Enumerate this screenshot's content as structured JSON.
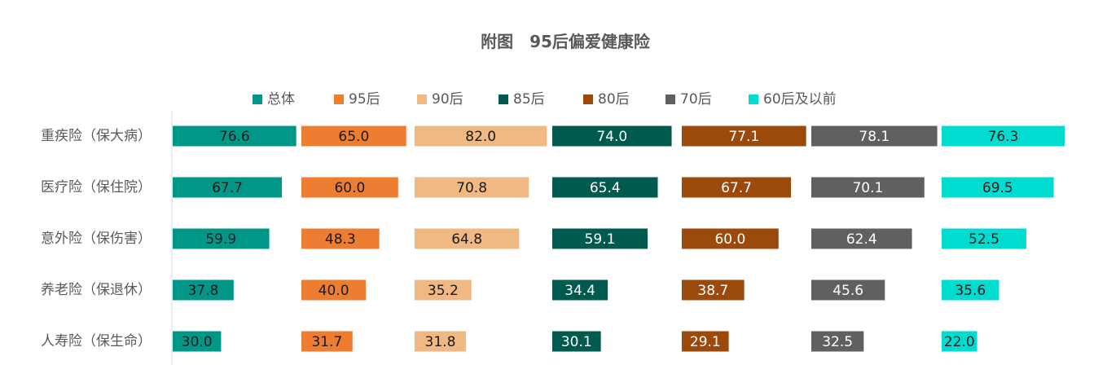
{
  "chart_data": {
    "type": "bar",
    "orientation": "horizontal",
    "layout": "small-multiples-by-series",
    "title": "附图　95后偏爱健康险",
    "categories": [
      "重疾险（保大病）",
      "医疗险（保住院）",
      "意外险（保伤害）",
      "养老险（保退休）",
      "人寿险（保生命）"
    ],
    "series": [
      {
        "name": "总体",
        "color": "#009688",
        "label_color": "#1a1a1a",
        "values": [
          76.6,
          67.7,
          59.9,
          37.8,
          30.0
        ]
      },
      {
        "name": "95后",
        "color": "#ED7D31",
        "label_color": "#1a1a1a",
        "values": [
          65.0,
          60.0,
          48.3,
          40.0,
          31.7
        ]
      },
      {
        "name": "90后",
        "color": "#F0B882",
        "label_color": "#1a1a1a",
        "values": [
          82.0,
          70.8,
          64.8,
          35.2,
          31.8
        ]
      },
      {
        "name": "85后",
        "color": "#005A4E",
        "label_color": "#ffffff",
        "values": [
          74.0,
          65.4,
          59.1,
          34.4,
          30.1
        ]
      },
      {
        "name": "80后",
        "color": "#9C4A0B",
        "label_color": "#ffffff",
        "values": [
          77.1,
          67.7,
          60.0,
          38.7,
          29.1
        ]
      },
      {
        "name": "70后",
        "color": "#606060",
        "label_color": "#ffffff",
        "values": [
          78.1,
          70.1,
          62.4,
          45.6,
          32.5
        ]
      },
      {
        "name": "60后及以前",
        "color": "#00DDD0",
        "label_color": "#1a1a1a",
        "values": [
          76.3,
          69.5,
          52.5,
          35.6,
          22.0
        ]
      }
    ],
    "legend_position": "top",
    "value_labels": "inside-bar-center",
    "grid": false,
    "axis_color": "#d9d9d9",
    "text_color": "#595959"
  }
}
